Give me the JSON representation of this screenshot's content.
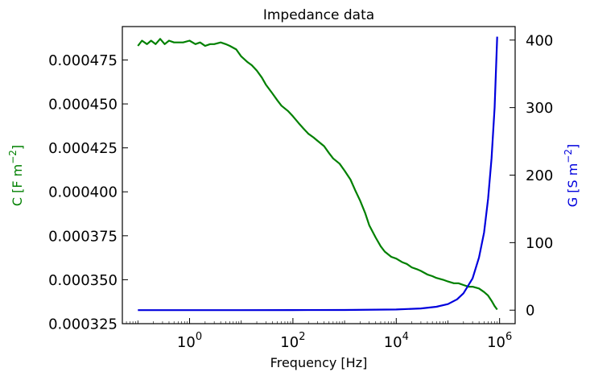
{
  "chart_data": {
    "type": "line",
    "title": "Impedance data",
    "xlabel": "Frequency [Hz]",
    "x_scale": "log",
    "xlim": [
      0.05,
      2000000
    ],
    "x_ticks": [
      {
        "value": 1,
        "base": "10",
        "exp": "0"
      },
      {
        "value": 100,
        "base": "10",
        "exp": "2"
      },
      {
        "value": 10000,
        "base": "10",
        "exp": "4"
      },
      {
        "value": 1000000,
        "base": "10",
        "exp": "6"
      }
    ],
    "y_left": {
      "label_main": "C [F m",
      "label_exp": "−2",
      "label_close": "]",
      "color": "#008000",
      "lim": [
        0.000325,
        0.000494
      ],
      "ticks": [
        "0.000325",
        "0.000350",
        "0.000375",
        "0.000400",
        "0.000425",
        "0.000450",
        "0.000475"
      ]
    },
    "y_right": {
      "label_main": "G [S m",
      "label_exp": "−2",
      "label_close": "]",
      "color": "#0000dd",
      "lim": [
        -20,
        420
      ],
      "ticks": [
        "0",
        "100",
        "200",
        "300",
        "400"
      ]
    },
    "series": [
      {
        "axis": "left",
        "color": "#008000",
        "x": [
          0.1,
          0.12,
          0.15,
          0.18,
          0.22,
          0.27,
          0.33,
          0.4,
          0.5,
          0.6,
          0.75,
          1.0,
          1.3,
          1.6,
          2.0,
          2.5,
          3.0,
          4.0,
          5.0,
          6.0,
          8.0,
          10,
          13,
          16,
          20,
          25,
          30,
          40,
          50,
          60,
          80,
          100,
          130,
          160,
          200,
          250,
          300,
          400,
          500,
          600,
          800,
          1000,
          1300,
          1600,
          2000,
          2500,
          3000,
          4000,
          5000,
          6000,
          8000,
          10000,
          13000,
          16000,
          20000,
          25000,
          30000,
          40000,
          50000,
          60000,
          80000,
          100000,
          130000,
          160000,
          200000,
          250000,
          300000,
          400000,
          500000,
          600000,
          700000,
          800000,
          900000
        ],
        "y": [
          0.000483,
          0.000486,
          0.000484,
          0.000486,
          0.000484,
          0.000487,
          0.000484,
          0.000486,
          0.000485,
          0.000485,
          0.000485,
          0.000486,
          0.000484,
          0.000485,
          0.000483,
          0.000484,
          0.000484,
          0.000485,
          0.000484,
          0.000483,
          0.000481,
          0.000477,
          0.000474,
          0.000472,
          0.000469,
          0.000465,
          0.000461,
          0.000456,
          0.000452,
          0.000449,
          0.000446,
          0.000443,
          0.000439,
          0.000436,
          0.000433,
          0.000431,
          0.000429,
          0.000426,
          0.000422,
          0.000419,
          0.000416,
          0.000412,
          0.000407,
          0.000401,
          0.000395,
          0.000388,
          0.000381,
          0.000374,
          0.000369,
          0.000366,
          0.000363,
          0.000362,
          0.00036,
          0.000359,
          0.000357,
          0.000356,
          0.000355,
          0.000353,
          0.000352,
          0.000351,
          0.00035,
          0.000349,
          0.000348,
          0.000348,
          0.000347,
          0.000346,
          0.000346,
          0.000345,
          0.000343,
          0.000341,
          0.000338,
          0.000335,
          0.000333
        ]
      },
      {
        "axis": "right",
        "color": "#0000dd",
        "x": [
          0.1,
          1,
          10,
          100,
          1000,
          10000,
          30000,
          60000,
          100000,
          150000,
          200000,
          300000,
          400000,
          500000,
          600000,
          700000,
          800000,
          900000
        ],
        "y": [
          0,
          0,
          0,
          0.1,
          0.3,
          1,
          2.5,
          5,
          9,
          16,
          25,
          47,
          78,
          115,
          165,
          225,
          300,
          405
        ]
      }
    ]
  }
}
